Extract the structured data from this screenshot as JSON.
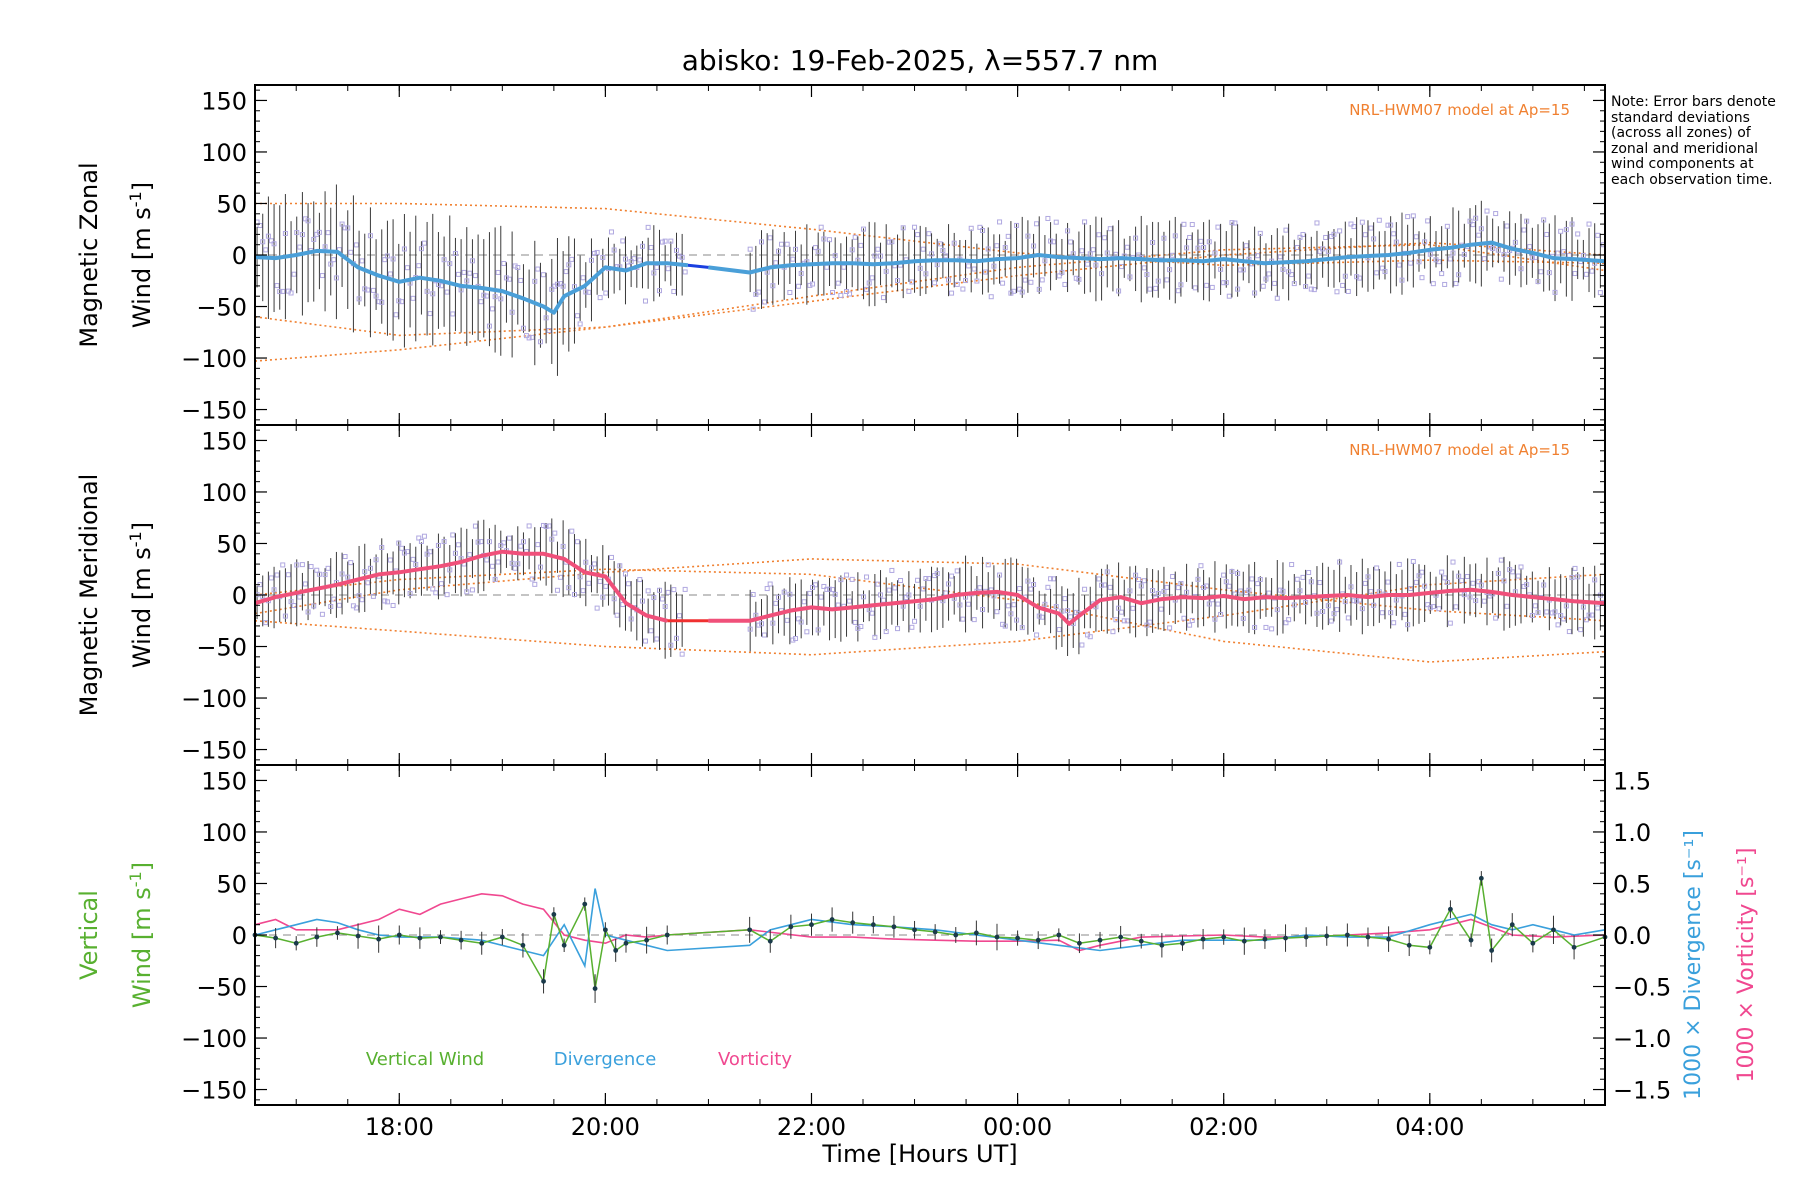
{
  "title": "abisko: 19-Feb-2025, λ=557.7 nm",
  "note": "Note: Error bars denote standard deviations (across all zones) of zonal and meridional wind components at each observation time.",
  "model_label": "NRL-HWM07 model at Ap=15",
  "xlabel": "Time [Hours UT]",
  "colors": {
    "zonal_line": "#4a9fd8",
    "zonal_gap": "#1a3fe0",
    "meridional_line": "#f0507a",
    "meridional_gap": "#f03030",
    "model": "#f08030",
    "scatter": "#b0a8e0",
    "vertical": "#58b030",
    "divergence": "#3aa0dc",
    "vorticity": "#f04890",
    "errorbar": "#3a3a3a"
  },
  "chart_data": [
    {
      "type": "line",
      "panel": "zonal",
      "ylabel_top": "Magnetic Zonal",
      "ylabel_bottom": "Wind [m s-1]",
      "ylabel_unit_sup": "-1",
      "ylim": [
        -165,
        165
      ],
      "yticks": [
        "150",
        "100",
        "50",
        "0",
        "−50",
        "−100",
        "−150"
      ],
      "ytick_values": [
        150,
        100,
        50,
        0,
        -50,
        -100,
        -150
      ],
      "xlim": [
        16.6,
        29.7
      ],
      "xticks": [
        "18:00",
        "20:00",
        "22:00",
        "00:00",
        "02:00",
        "04:00"
      ],
      "xtick_values": [
        18,
        20,
        22,
        24,
        26,
        28
      ],
      "x": [
        16.6,
        16.8,
        17.0,
        17.2,
        17.4,
        17.6,
        17.8,
        18.0,
        18.2,
        18.4,
        18.6,
        18.8,
        19.0,
        19.2,
        19.4,
        19.5,
        19.6,
        19.8,
        20.0,
        20.2,
        20.4,
        20.6,
        20.8,
        21.0,
        21.4,
        21.6,
        21.8,
        22.0,
        22.2,
        22.4,
        22.6,
        22.8,
        23.0,
        23.2,
        23.4,
        23.6,
        23.8,
        24.0,
        24.2,
        24.4,
        24.6,
        24.8,
        25.0,
        25.2,
        25.4,
        25.6,
        25.8,
        26.0,
        26.2,
        26.4,
        26.6,
        26.8,
        27.0,
        27.2,
        27.4,
        27.6,
        27.8,
        28.0,
        28.2,
        28.4,
        28.6,
        28.8,
        29.0,
        29.2,
        29.4,
        29.7
      ],
      "y": [
        -2,
        -3,
        0,
        4,
        3,
        -12,
        -20,
        -26,
        -22,
        -25,
        -30,
        -32,
        -35,
        -42,
        -50,
        -56,
        -40,
        -30,
        -12,
        -15,
        -8,
        -8,
        -10,
        -12,
        -17,
        -12,
        -10,
        -9,
        -8,
        -8,
        -9,
        -8,
        -6,
        -5,
        -5,
        -6,
        -4,
        -3,
        0,
        -2,
        -3,
        -4,
        -3,
        -4,
        -5,
        -5,
        -6,
        -4,
        -6,
        -8,
        -7,
        -6,
        -4,
        -2,
        -1,
        0,
        2,
        5,
        7,
        10,
        12,
        6,
        2,
        -3,
        -4,
        -6
      ],
      "scatter_spread": 28,
      "model_curves": [
        {
          "x": [
            16.6,
            18,
            20,
            22,
            24,
            26,
            28,
            29.7
          ],
          "y": [
            50,
            50,
            45,
            25,
            2,
            -10,
            -5,
            -8
          ]
        },
        {
          "x": [
            16.6,
            18,
            20,
            22,
            24,
            26,
            28,
            29.7
          ],
          "y": [
            -60,
            -78,
            -70,
            -45,
            -20,
            0,
            12,
            0
          ]
        },
        {
          "x": [
            16.6,
            18,
            20,
            22,
            24,
            26,
            28,
            29.7
          ],
          "y": [
            -103,
            -92,
            -70,
            -40,
            -12,
            5,
            10,
            -15
          ]
        }
      ]
    },
    {
      "type": "line",
      "panel": "meridional",
      "ylabel_top": "Magnetic Meridional",
      "ylabel_bottom": "Wind [m s-1]",
      "ylabel_unit_sup": "-1",
      "ylim": [
        -165,
        165
      ],
      "yticks": [
        "150",
        "100",
        "50",
        "0",
        "−50",
        "−100",
        "−150"
      ],
      "ytick_values": [
        150,
        100,
        50,
        0,
        -50,
        -100,
        -150
      ],
      "xlim": [
        16.6,
        29.7
      ],
      "x": [
        16.6,
        16.8,
        17.0,
        17.2,
        17.4,
        17.6,
        17.8,
        18.0,
        18.2,
        18.4,
        18.6,
        18.8,
        19.0,
        19.2,
        19.4,
        19.6,
        19.8,
        20.0,
        20.2,
        20.4,
        20.6,
        21.0,
        21.4,
        21.6,
        21.8,
        22.0,
        22.2,
        22.4,
        22.6,
        22.8,
        23.0,
        23.2,
        23.4,
        23.6,
        23.8,
        24.0,
        24.2,
        24.4,
        24.5,
        24.6,
        24.8,
        25.0,
        25.2,
        25.4,
        25.6,
        25.8,
        26.0,
        26.2,
        26.4,
        26.6,
        26.8,
        27.0,
        27.2,
        27.4,
        27.6,
        27.8,
        28.0,
        28.2,
        28.4,
        28.6,
        28.8,
        29.0,
        29.2,
        29.4,
        29.7
      ],
      "y": [
        -8,
        -2,
        2,
        6,
        10,
        15,
        20,
        22,
        25,
        28,
        32,
        38,
        42,
        40,
        40,
        35,
        22,
        18,
        -8,
        -20,
        -25,
        -25,
        -25,
        -20,
        -15,
        -12,
        -14,
        -12,
        -10,
        -8,
        -6,
        -4,
        0,
        2,
        3,
        0,
        -12,
        -18,
        -28,
        -20,
        -5,
        -2,
        -8,
        -4,
        -2,
        -3,
        -1,
        -4,
        -2,
        -3,
        -2,
        -1,
        0,
        -2,
        0,
        0,
        2,
        4,
        5,
        3,
        0,
        -2,
        -4,
        -6,
        -8
      ],
      "scatter_spread": 25,
      "model_curves": [
        {
          "x": [
            16.6,
            18,
            20,
            22,
            24,
            26,
            28,
            29.7
          ],
          "y": [
            -18,
            5,
            22,
            35,
            30,
            5,
            -15,
            -25
          ]
        },
        {
          "x": [
            16.6,
            18,
            20,
            22,
            24,
            26,
            28,
            29.7
          ],
          "y": [
            -25,
            -35,
            -50,
            -58,
            -45,
            -20,
            10,
            20
          ]
        },
        {
          "x": [
            16.6,
            18,
            20,
            22,
            24,
            26,
            28,
            29.7
          ],
          "y": [
            0,
            15,
            25,
            20,
            -5,
            -45,
            -65,
            -55
          ]
        }
      ]
    },
    {
      "type": "line",
      "panel": "vertical",
      "ylabel_top": "Vertical",
      "ylabel_bottom": "Wind [m s-1]",
      "ylabel_unit_sup": "-1",
      "ylim": [
        -165,
        165
      ],
      "yticks": [
        "150",
        "100",
        "50",
        "0",
        "−50",
        "−100",
        "−150"
      ],
      "ytick_values": [
        150,
        100,
        50,
        0,
        -50,
        -100,
        -150
      ],
      "y2lim": [
        -1.65,
        1.65
      ],
      "y2ticks": [
        "1.5",
        "1.0",
        "0.5",
        "0.0",
        "−0.5",
        "−1.0",
        "−1.5"
      ],
      "y2tick_values": [
        1.5,
        1.0,
        0.5,
        0.0,
        -0.5,
        -1.0,
        -1.5
      ],
      "y2label_div": "1000 × Divergence [s-1]",
      "y2label_vor": "1000 × Vorticity [s-1]",
      "legend": [
        "Vertical Wind",
        "Divergence",
        "Vorticity"
      ],
      "series": [
        {
          "name": "Vertical Wind",
          "x": [
            16.6,
            16.8,
            17.0,
            17.2,
            17.4,
            17.6,
            17.8,
            18.0,
            18.2,
            18.4,
            18.6,
            18.8,
            19.0,
            19.2,
            19.4,
            19.5,
            19.6,
            19.8,
            19.9,
            20.0,
            20.1,
            20.2,
            20.4,
            20.6,
            21.4,
            21.6,
            21.8,
            22.0,
            22.2,
            22.4,
            22.6,
            22.8,
            23.0,
            23.2,
            23.4,
            23.6,
            23.8,
            24.0,
            24.2,
            24.4,
            24.6,
            24.8,
            25.0,
            25.2,
            25.4,
            25.6,
            25.8,
            26.0,
            26.2,
            26.4,
            26.6,
            26.8,
            27.0,
            27.2,
            27.4,
            27.6,
            27.8,
            28.0,
            28.2,
            28.4,
            28.5,
            28.6,
            28.8,
            29.0,
            29.2,
            29.4,
            29.7
          ],
          "y": [
            0,
            -3,
            -8,
            -2,
            2,
            -1,
            -4,
            0,
            -3,
            -2,
            -5,
            -8,
            -2,
            -10,
            -45,
            20,
            -10,
            30,
            -52,
            5,
            -15,
            -8,
            -5,
            0,
            5,
            -6,
            8,
            10,
            15,
            12,
            10,
            8,
            5,
            3,
            0,
            2,
            -2,
            -3,
            -5,
            0,
            -8,
            -5,
            -2,
            -6,
            -10,
            -8,
            -4,
            -2,
            -6,
            -4,
            -3,
            -2,
            -1,
            0,
            -2,
            -4,
            -10,
            -12,
            25,
            -5,
            55,
            -15,
            10,
            -8,
            5,
            -12,
            -2
          ]
        },
        {
          "name": "Divergence",
          "x": [
            16.6,
            16.8,
            17.0,
            17.2,
            17.4,
            17.6,
            17.8,
            18.0,
            18.4,
            18.8,
            19.2,
            19.4,
            19.6,
            19.8,
            19.9,
            20.0,
            20.2,
            20.4,
            20.6,
            21.4,
            21.6,
            21.8,
            22.0,
            22.4,
            22.8,
            23.2,
            23.6,
            24.0,
            24.4,
            24.8,
            25.2,
            25.6,
            26.0,
            26.4,
            26.8,
            27.2,
            27.6,
            28.0,
            28.2,
            28.4,
            28.6,
            28.8,
            29.0,
            29.2,
            29.4,
            29.7
          ],
          "y": [
            0.0,
            0.05,
            0.1,
            0.15,
            0.12,
            0.05,
            0.0,
            -0.02,
            -0.02,
            -0.05,
            -0.15,
            -0.2,
            0.1,
            -0.3,
            0.45,
            0.0,
            -0.05,
            -0.1,
            -0.15,
            -0.1,
            0.05,
            0.1,
            0.15,
            0.1,
            0.08,
            0.05,
            0.0,
            -0.05,
            -0.1,
            -0.15,
            -0.1,
            -0.05,
            -0.05,
            -0.05,
            0.0,
            -0.02,
            -0.02,
            0.1,
            0.15,
            0.2,
            0.1,
            0.05,
            0.1,
            0.05,
            0.0,
            0.05
          ]
        },
        {
          "name": "Vorticity",
          "x": [
            16.6,
            16.8,
            17.0,
            17.4,
            17.8,
            18.0,
            18.2,
            18.4,
            18.6,
            18.8,
            19.0,
            19.2,
            19.4,
            19.6,
            19.8,
            20.0,
            20.2,
            20.4,
            20.6,
            21.4,
            22.0,
            22.4,
            22.8,
            23.2,
            23.6,
            24.0,
            24.4,
            24.6,
            24.8,
            25.2,
            25.6,
            26.0,
            26.4,
            26.8,
            27.2,
            27.6,
            28.0,
            28.4,
            28.8,
            29.2,
            29.7
          ],
          "y": [
            0.1,
            0.15,
            0.05,
            0.05,
            0.15,
            0.25,
            0.2,
            0.3,
            0.35,
            0.4,
            0.38,
            0.3,
            0.25,
            0.0,
            -0.05,
            -0.08,
            0.0,
            -0.02,
            0.0,
            0.05,
            -0.02,
            -0.02,
            -0.04,
            -0.05,
            -0.06,
            -0.06,
            -0.05,
            -0.15,
            -0.1,
            -0.02,
            -0.01,
            0.0,
            -0.02,
            -0.02,
            0.0,
            0.02,
            0.05,
            0.15,
            0.0,
            -0.02,
            0.0
          ]
        }
      ]
    }
  ]
}
